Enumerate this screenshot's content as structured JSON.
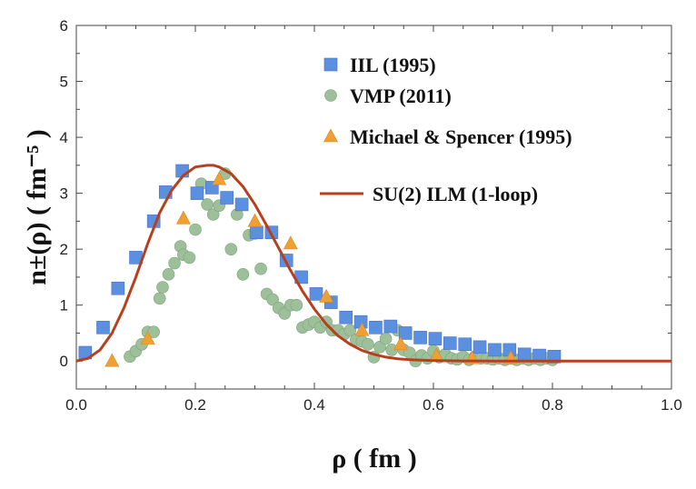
{
  "chart_data": {
    "type": "scatter",
    "xlabel": "ρ ( fm )",
    "ylabel": "n±(ρ) ( fm⁻⁵ )",
    "xlim": [
      0,
      1
    ],
    "ylim": [
      -0.5,
      6
    ],
    "x_ticks": [
      0.0,
      0.2,
      0.4,
      0.6,
      0.8,
      1.0
    ],
    "x_tick_labels": [
      "0.0",
      "0.2",
      "0.4",
      "0.6",
      "0.8",
      "1.0"
    ],
    "y_ticks": [
      0,
      1,
      2,
      3,
      4,
      5,
      6
    ],
    "y_tick_labels": [
      "0",
      "1",
      "2",
      "3",
      "4",
      "5",
      "6"
    ],
    "grid": false,
    "legend_position": "top-right",
    "series": [
      {
        "name": "IIL (1995)",
        "marker": "square",
        "color": "#5b8fe0",
        "x": [
          0.015,
          0.045,
          0.07,
          0.1,
          0.13,
          0.15,
          0.178,
          0.203,
          0.228,
          0.253,
          0.278,
          0.303,
          0.328,
          0.353,
          0.378,
          0.403,
          0.428,
          0.453,
          0.478,
          0.503,
          0.528,
          0.553,
          0.578,
          0.603,
          0.628,
          0.653,
          0.678,
          0.703,
          0.728,
          0.753,
          0.778,
          0.803
        ],
        "y": [
          0.15,
          0.6,
          1.3,
          1.85,
          2.5,
          3.02,
          3.4,
          3.0,
          3.1,
          2.92,
          2.8,
          2.3,
          2.3,
          1.8,
          1.5,
          1.2,
          1.05,
          0.78,
          0.7,
          0.6,
          0.62,
          0.5,
          0.42,
          0.4,
          0.32,
          0.3,
          0.25,
          0.2,
          0.2,
          0.12,
          0.1,
          0.08
        ]
      },
      {
        "name": "VMP (2011)",
        "marker": "circle",
        "color": "#9dc09b",
        "x": [
          0.09,
          0.1,
          0.11,
          0.12,
          0.13,
          0.14,
          0.145,
          0.155,
          0.165,
          0.175,
          0.18,
          0.19,
          0.2,
          0.21,
          0.22,
          0.23,
          0.24,
          0.25,
          0.26,
          0.27,
          0.28,
          0.29,
          0.3,
          0.31,
          0.32,
          0.33,
          0.34,
          0.35,
          0.36,
          0.37,
          0.38,
          0.39,
          0.4,
          0.41,
          0.42,
          0.43,
          0.44,
          0.45,
          0.46,
          0.47,
          0.48,
          0.49,
          0.5,
          0.51,
          0.52,
          0.53,
          0.54,
          0.55,
          0.56,
          0.57,
          0.58,
          0.59,
          0.6,
          0.61,
          0.62,
          0.63,
          0.64,
          0.65,
          0.66,
          0.67,
          0.68,
          0.69,
          0.7,
          0.71,
          0.72,
          0.73,
          0.74,
          0.75,
          0.76,
          0.77,
          0.78,
          0.79,
          0.8
        ],
        "y": [
          0.08,
          0.18,
          0.3,
          0.52,
          0.52,
          1.12,
          1.32,
          1.55,
          1.75,
          2.05,
          1.9,
          1.85,
          2.35,
          3.17,
          2.8,
          2.62,
          2.78,
          3.35,
          2.0,
          2.62,
          1.55,
          2.25,
          2.28,
          1.65,
          1.2,
          1.1,
          0.95,
          0.85,
          1.0,
          1.0,
          0.6,
          0.65,
          0.7,
          0.6,
          0.7,
          0.55,
          0.55,
          0.48,
          0.55,
          0.38,
          0.35,
          0.3,
          0.07,
          0.25,
          0.4,
          0.2,
          0.55,
          0.2,
          0.15,
          0.0,
          0.1,
          0.05,
          0.18,
          0.07,
          0.12,
          0.05,
          0.03,
          0.08,
          0.02,
          0.08,
          0.05,
          0.05,
          0.03,
          0.05,
          0.02,
          0.05,
          0.02,
          0.05,
          0.02,
          0.05,
          0.02,
          0.05,
          0.02
        ]
      },
      {
        "name": "Michael & Spencer (1995)",
        "marker": "triangle",
        "color": "#f0a033",
        "x": [
          0.06,
          0.12,
          0.18,
          0.24,
          0.3,
          0.36,
          0.42,
          0.48,
          0.545,
          0.605,
          0.665,
          0.73
        ],
        "y": [
          0.0,
          0.4,
          2.55,
          3.25,
          2.5,
          2.1,
          1.15,
          0.55,
          0.3,
          0.1,
          0.05,
          0.05
        ]
      },
      {
        "name": "SU(2) ILM (1-loop)",
        "marker": "line",
        "color": "#b6401d",
        "x": [
          0.0,
          0.02,
          0.04,
          0.06,
          0.08,
          0.1,
          0.12,
          0.14,
          0.16,
          0.18,
          0.2,
          0.22,
          0.23,
          0.24,
          0.26,
          0.28,
          0.3,
          0.32,
          0.34,
          0.36,
          0.38,
          0.4,
          0.42,
          0.44,
          0.46,
          0.48,
          0.5,
          0.52,
          0.54,
          0.56,
          0.58,
          0.6,
          0.62,
          0.64,
          0.66,
          0.68,
          0.7,
          0.75,
          0.8,
          0.85,
          0.9,
          0.95,
          1.0
        ],
        "y": [
          0.0,
          0.05,
          0.2,
          0.5,
          0.95,
          1.5,
          2.1,
          2.65,
          3.05,
          3.32,
          3.47,
          3.5,
          3.5,
          3.47,
          3.35,
          3.12,
          2.8,
          2.42,
          2.02,
          1.62,
          1.25,
          0.93,
          0.66,
          0.45,
          0.3,
          0.19,
          0.12,
          0.07,
          0.04,
          0.025,
          0.015,
          0.008,
          0.005,
          0.003,
          0.002,
          0.001,
          0.0,
          0.0,
          0.0,
          0.0,
          0.0,
          0.0,
          0.0
        ]
      }
    ]
  }
}
